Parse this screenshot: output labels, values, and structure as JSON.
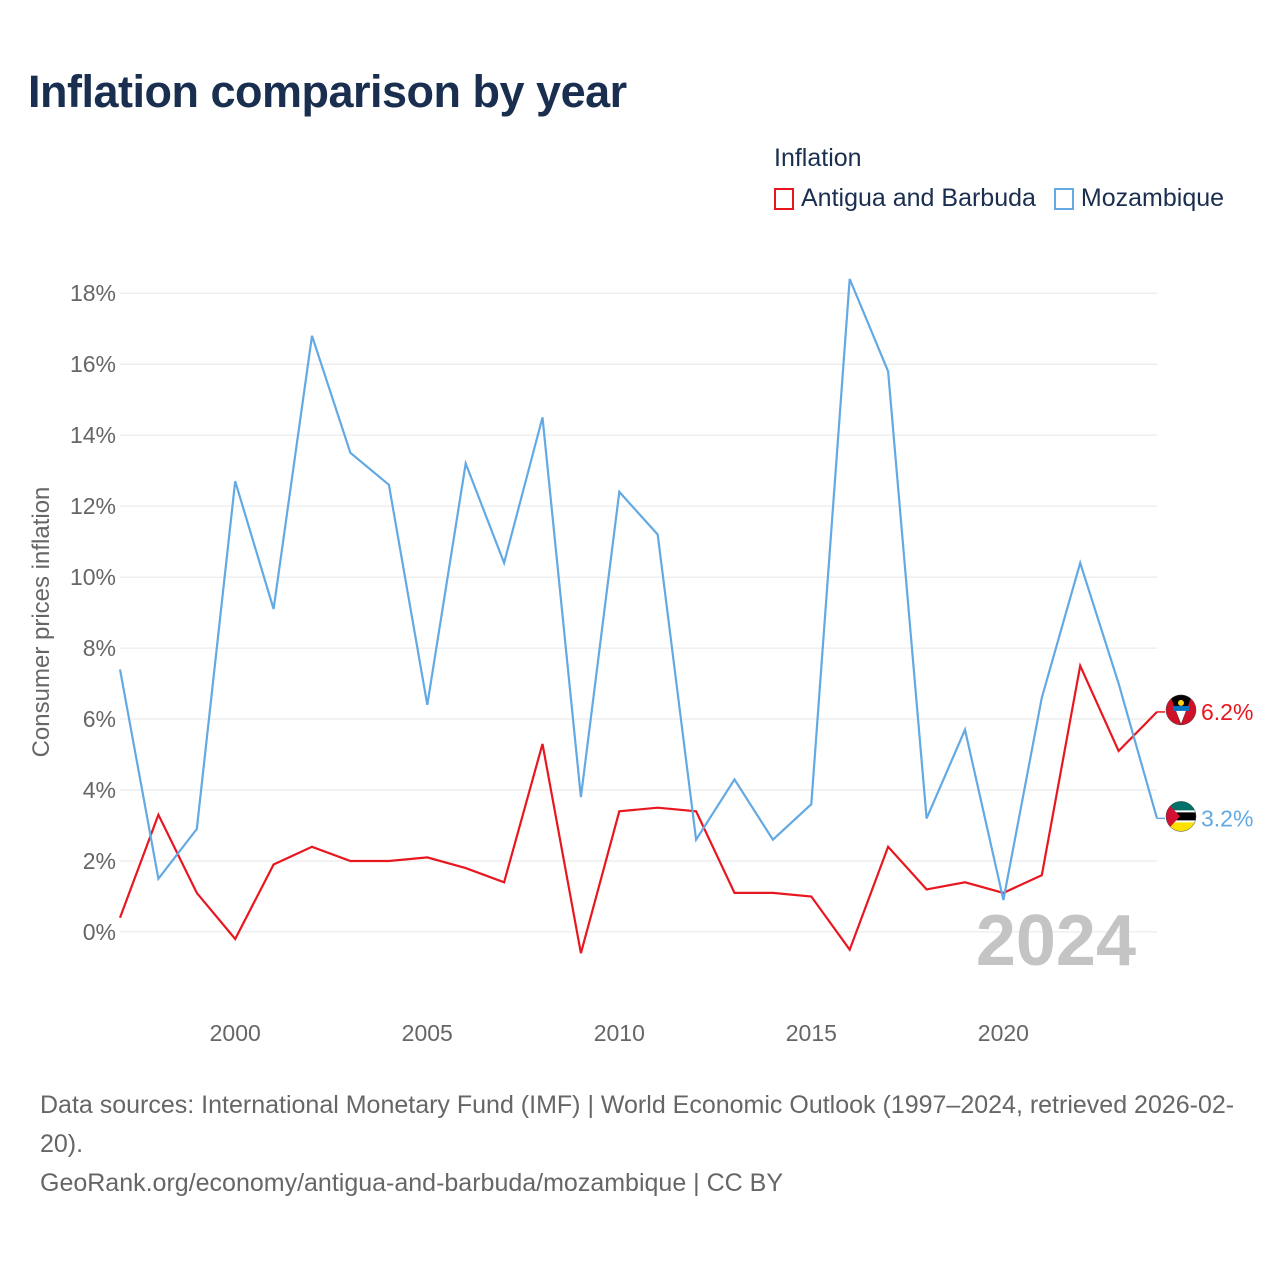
{
  "title": "Inflation comparison by year",
  "legend": {
    "title": "Inflation",
    "items": [
      {
        "label": "Antigua and Barbuda",
        "color": "#e8171f"
      },
      {
        "label": "Mozambique",
        "color": "#63a9e3"
      }
    ]
  },
  "footer": {
    "sources": "Data sources: International Monetary Fund (IMF) | World Economic Outlook (1997–2024, retrieved 2026-02-20).",
    "credit": "GeoRank.org/economy/antigua-and-barbuda/mozambique | CC BY"
  },
  "chart_data": {
    "type": "line",
    "title": "Inflation comparison by year",
    "xlabel": "",
    "ylabel": "Consumer prices inflation",
    "x": [
      1997,
      1998,
      1999,
      2000,
      2001,
      2002,
      2003,
      2004,
      2005,
      2006,
      2007,
      2008,
      2009,
      2010,
      2011,
      2012,
      2013,
      2014,
      2015,
      2016,
      2017,
      2018,
      2019,
      2020,
      2021,
      2022,
      2023,
      2024
    ],
    "xlim": [
      1997,
      2024
    ],
    "ylim": [
      -2.2,
      19.5
    ],
    "x_ticks": [
      2000,
      2005,
      2010,
      2015,
      2020
    ],
    "x_tick_labels": [
      "2000",
      "2005",
      "2010",
      "2015",
      "2020"
    ],
    "y_ticks": [
      0,
      2,
      4,
      6,
      8,
      10,
      12,
      14,
      16,
      18
    ],
    "y_tick_labels": [
      "0%",
      "2%",
      "4%",
      "6%",
      "8%",
      "10%",
      "12%",
      "14%",
      "16%",
      "18%"
    ],
    "grid": true,
    "year_watermark": "2024",
    "series": [
      {
        "name": "Antigua and Barbuda",
        "color": "#e8171f",
        "end_label": "6.2%",
        "values": [
          0.4,
          3.3,
          1.1,
          -0.2,
          1.9,
          2.4,
          2.0,
          2.0,
          2.1,
          1.8,
          1.4,
          5.3,
          -0.6,
          3.4,
          3.5,
          3.4,
          1.1,
          1.1,
          1.0,
          -0.5,
          2.4,
          1.2,
          1.4,
          1.1,
          1.6,
          7.5,
          5.1,
          6.2
        ]
      },
      {
        "name": "Mozambique",
        "color": "#63a9e3",
        "end_label": "3.2%",
        "values": [
          7.4,
          1.5,
          2.9,
          12.7,
          9.1,
          16.8,
          13.5,
          12.6,
          6.4,
          13.2,
          10.4,
          14.5,
          3.8,
          12.4,
          11.2,
          2.6,
          4.3,
          2.6,
          3.6,
          18.4,
          15.8,
          3.2,
          5.7,
          0.9,
          6.6,
          10.4,
          7.0,
          3.2
        ]
      }
    ]
  }
}
